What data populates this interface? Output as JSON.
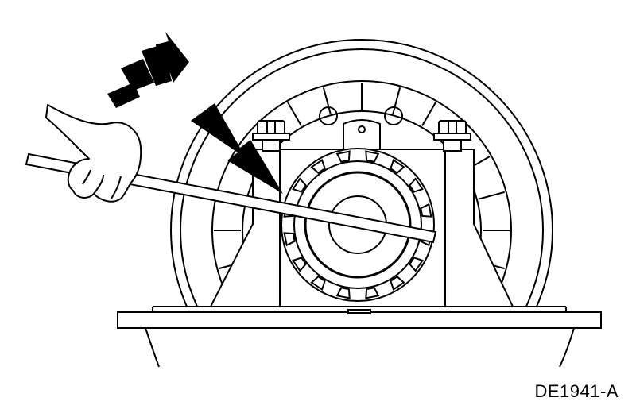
{
  "figure": {
    "code": "DE1941-A"
  },
  "colors": {
    "ink": "#000000",
    "paper": "#ffffff"
  },
  "parts": {
    "slots": 16
  }
}
